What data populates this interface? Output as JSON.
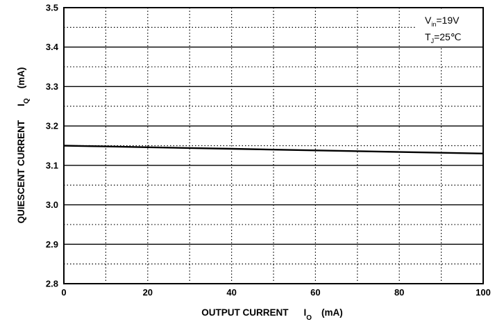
{
  "chart_data": {
    "type": "line",
    "xlabel": "OUTPUT CURRENT",
    "xlabel_symbol": "I",
    "xlabel_symbol_sub": "O",
    "xlabel_unit": "(mA)",
    "ylabel": "QUIESCENT CURRENT",
    "ylabel_symbol": "I",
    "ylabel_symbol_sub": "Q",
    "ylabel_unit": "(mA)",
    "xlim": [
      0,
      100
    ],
    "ylim": [
      2.8,
      3.5
    ],
    "x_ticks": [
      0,
      20,
      40,
      60,
      80,
      100
    ],
    "x_tick_labels": [
      "0",
      "20",
      "40",
      "60",
      "80",
      "100"
    ],
    "y_ticks": [
      2.8,
      2.9,
      3.0,
      3.1,
      3.2,
      3.3,
      3.4,
      3.5
    ],
    "y_tick_labels": [
      "2.8",
      "2.9",
      "3.0",
      "3.1",
      "3.2",
      "3.3",
      "3.4",
      "3.5"
    ],
    "grid": true,
    "series": [
      {
        "x": [
          0,
          10,
          20,
          30,
          40,
          50,
          60,
          70,
          80,
          90,
          100
        ],
        "values": [
          3.15,
          3.148,
          3.146,
          3.144,
          3.142,
          3.14,
          3.138,
          3.136,
          3.134,
          3.132,
          3.13
        ]
      }
    ],
    "annotations": [
      {
        "base": "V",
        "sub": "in",
        "rest": "=19V"
      },
      {
        "base": "T",
        "sub": "J",
        "rest": "=25℃"
      }
    ],
    "annotation_placement": "top-right"
  }
}
